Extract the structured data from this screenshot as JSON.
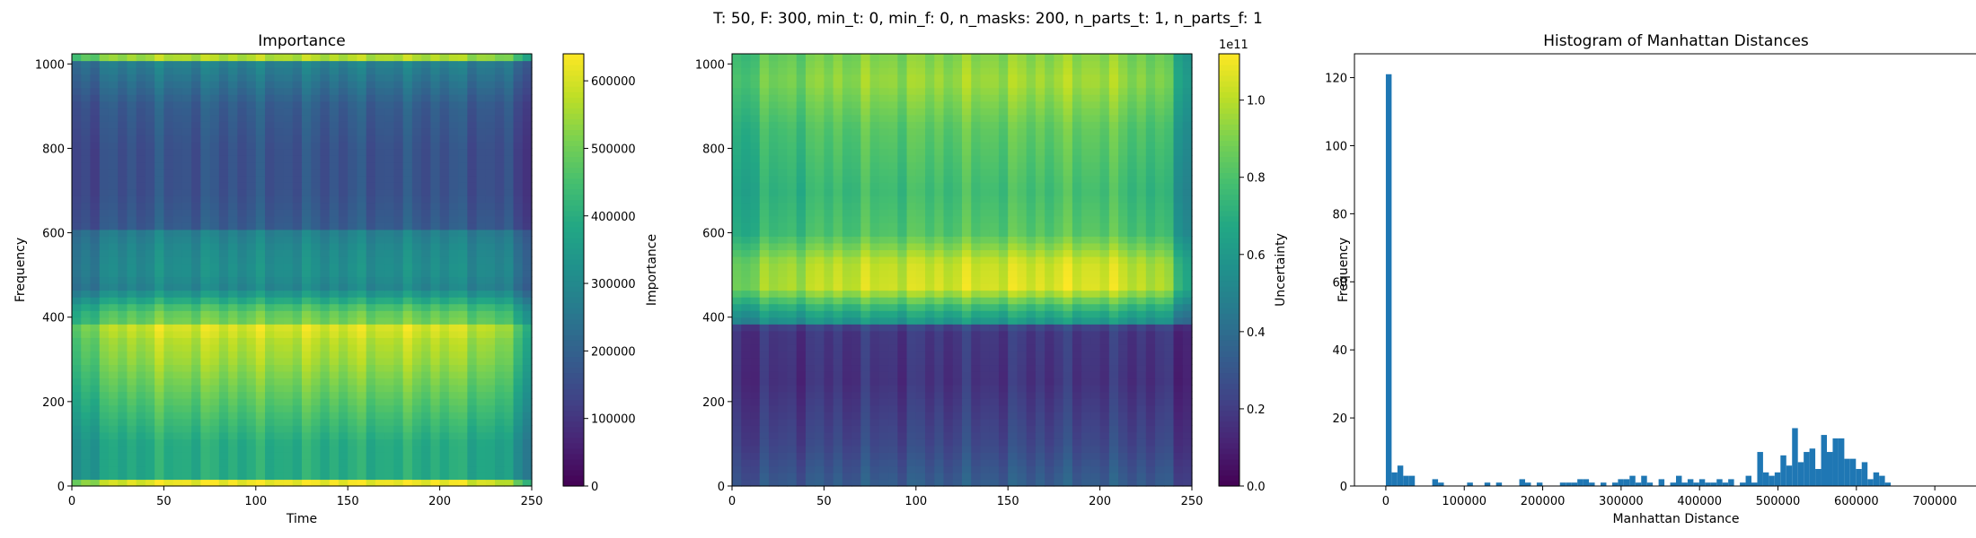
{
  "suptitle": "T: 50, F: 300, min_t: 0, min_f: 0, n_masks: 200, n_parts_t: 1, n_parts_f: 1",
  "colors": {
    "hist_bar": "#1f77b4",
    "axes": "#000000"
  },
  "colormap": "viridis",
  "chart_data": [
    {
      "type": "heatmap",
      "title": "Importance",
      "xlabel": "Time",
      "ylabel": "Frequency",
      "xlim": [
        0,
        250
      ],
      "ylim": [
        0,
        1024
      ],
      "xticks": [
        0,
        50,
        100,
        150,
        200,
        250
      ],
      "yticks": [
        0,
        200,
        400,
        600,
        800,
        1000
      ],
      "colorbar": {
        "label": "Importance",
        "range": [
          0,
          640000
        ],
        "ticks": [
          0,
          100000,
          200000,
          300000,
          400000,
          500000,
          600000
        ],
        "tick_labels": [
          "0",
          "100000",
          "200000",
          "300000",
          "400000",
          "500000",
          "600000"
        ],
        "offset_text": ""
      },
      "freq_profile": [
        {
          "f": 0,
          "v": 0.66
        },
        {
          "f": 8,
          "v": 0.98
        },
        {
          "f": 20,
          "v": 0.62
        },
        {
          "f": 100,
          "v": 0.62
        },
        {
          "f": 200,
          "v": 0.74
        },
        {
          "f": 300,
          "v": 0.86
        },
        {
          "f": 350,
          "v": 0.9
        },
        {
          "f": 375,
          "v": 0.96
        },
        {
          "f": 385,
          "v": 0.8
        },
        {
          "f": 415,
          "v": 0.76
        },
        {
          "f": 440,
          "v": 0.62
        },
        {
          "f": 470,
          "v": 0.46
        },
        {
          "f": 510,
          "v": 0.5
        },
        {
          "f": 560,
          "v": 0.48
        },
        {
          "f": 600,
          "v": 0.44
        },
        {
          "f": 610,
          "v": 0.3
        },
        {
          "f": 700,
          "v": 0.26
        },
        {
          "f": 800,
          "v": 0.26
        },
        {
          "f": 900,
          "v": 0.3
        },
        {
          "f": 1000,
          "v": 0.44
        },
        {
          "f": 1015,
          "v": 0.88
        },
        {
          "f": 1024,
          "v": 0.9
        }
      ],
      "time_profile": [
        {
          "t": 0,
          "v": -0.25
        },
        {
          "t": 8,
          "v": -0.15
        },
        {
          "t": 25,
          "v": -0.05
        },
        {
          "t": 50,
          "v": 0
        },
        {
          "t": 200,
          "v": 0
        },
        {
          "t": 230,
          "v": -0.05
        },
        {
          "t": 242,
          "v": -0.2
        },
        {
          "t": 250,
          "v": -0.35
        }
      ]
    },
    {
      "type": "heatmap",
      "title": "",
      "xlabel": "",
      "ylabel": "",
      "xlim": [
        0,
        250
      ],
      "ylim": [
        0,
        1024
      ],
      "xticks": [
        0,
        50,
        100,
        150,
        200,
        250
      ],
      "yticks": [
        0,
        200,
        400,
        600,
        800,
        1000
      ],
      "colorbar": {
        "label": "Uncertainty",
        "range": [
          0,
          1.12
        ],
        "ticks": [
          0.0,
          0.2,
          0.4,
          0.6,
          0.8,
          1.0
        ],
        "tick_labels": [
          "0.0",
          "0.2",
          "0.4",
          "0.6",
          "0.8",
          "1.0"
        ],
        "offset_text": "1e11"
      },
      "freq_profile": [
        {
          "f": 0,
          "v": 0.3
        },
        {
          "f": 100,
          "v": 0.22
        },
        {
          "f": 250,
          "v": 0.15
        },
        {
          "f": 375,
          "v": 0.17
        },
        {
          "f": 385,
          "v": 0.5
        },
        {
          "f": 420,
          "v": 0.64
        },
        {
          "f": 470,
          "v": 0.92
        },
        {
          "f": 530,
          "v": 0.9
        },
        {
          "f": 600,
          "v": 0.72
        },
        {
          "f": 700,
          "v": 0.68
        },
        {
          "f": 850,
          "v": 0.74
        },
        {
          "f": 960,
          "v": 0.84
        },
        {
          "f": 1024,
          "v": 0.8
        }
      ],
      "time_profile": [
        {
          "t": 0,
          "v": -0.2
        },
        {
          "t": 15,
          "v": -0.08
        },
        {
          "t": 60,
          "v": 0
        },
        {
          "t": 200,
          "v": 0.04
        },
        {
          "t": 235,
          "v": -0.05
        },
        {
          "t": 245,
          "v": -0.3
        },
        {
          "t": 250,
          "v": -0.4
        }
      ]
    },
    {
      "type": "bar",
      "subtype": "histogram",
      "title": "Histogram of Manhattan Distances",
      "xlabel": "Manhattan Distance",
      "ylabel": "Frequency",
      "xlim": [
        -40000,
        780000
      ],
      "ylim": [
        0,
        127
      ],
      "xticks": [
        0,
        100000,
        200000,
        300000,
        400000,
        500000,
        600000,
        700000
      ],
      "yticks": [
        0,
        20,
        40,
        60,
        80,
        100,
        120
      ],
      "bin_start": 0,
      "bin_width": 7400,
      "counts": [
        121,
        4,
        6,
        3,
        3,
        0,
        0,
        0,
        2,
        1,
        0,
        0,
        0,
        0,
        1,
        0,
        0,
        1,
        0,
        1,
        0,
        0,
        0,
        2,
        1,
        0,
        1,
        0,
        0,
        0,
        1,
        1,
        1,
        2,
        2,
        1,
        0,
        1,
        0,
        1,
        2,
        2,
        3,
        1,
        3,
        1,
        0,
        2,
        0,
        1,
        3,
        1,
        2,
        1,
        2,
        1,
        1,
        2,
        1,
        2,
        0,
        1,
        3,
        1,
        10,
        4,
        3,
        4,
        9,
        6,
        17,
        7,
        10,
        11,
        5,
        15,
        10,
        14,
        14,
        8,
        8,
        5,
        7,
        2,
        4,
        3,
        1
      ]
    }
  ]
}
